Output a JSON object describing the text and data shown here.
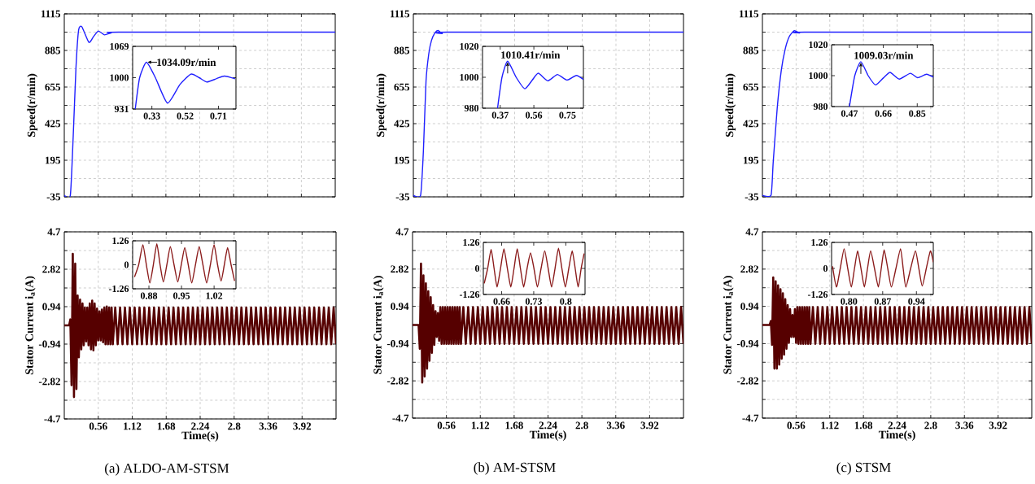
{
  "chart_data": [
    {
      "type": "line",
      "ylabel": "Speed(r/min)",
      "xlim": [
        0,
        4.48
      ],
      "ylim": [
        -35,
        1115
      ],
      "xticks": [
        0.56,
        1.12,
        1.68,
        2.24,
        2.8,
        3.36,
        3.92
      ],
      "yticks": [
        -35,
        {
          "value": 80,
          "label": null
        },
        195,
        {
          "value": 310,
          "label": null
        },
        425,
        {
          "value": 540,
          "label": null
        },
        655,
        {
          "value": 770,
          "label": null
        },
        885,
        {
          "value": 1000,
          "label": null
        },
        1115
      ],
      "grid": true,
      "tick_labels": "y",
      "series": [
        {
          "color": "#2020ff",
          "x": [
            0,
            0.1,
            0.148,
            0.193,
            0.237,
            0.29,
            0.407,
            0.48,
            0.564,
            0.663,
            0.775,
            0.9,
            4.48
          ],
          "values": [
            -25,
            -25,
            348,
            774,
            1013,
            1034,
            936,
            970,
            1007,
            983,
            995,
            1000,
            1000
          ]
        }
      ]
    },
    {
      "type": "line",
      "xlim": [
        0.22,
        0.81
      ],
      "ylim": [
        931,
        1069
      ],
      "xticks": [
        0.33,
        0.52,
        0.71
      ],
      "yticks": [
        931,
        1000,
        1069
      ],
      "annotations": [
        {
          "text": "1034.09r/min",
          "x": 0.299,
          "y": 1034.09
        }
      ],
      "series": [
        {
          "color": "#2020ff",
          "x": [
            0.235,
            0.26,
            0.299,
            0.35,
            0.419,
            0.49,
            0.553,
            0.6,
            0.644,
            0.7,
            0.744,
            0.805
          ],
          "values": [
            931,
            1000,
            1034.09,
            1000,
            944,
            985,
            1008,
            1000,
            990.5,
            998,
            1003.6,
            997.6
          ]
        }
      ]
    },
    {
      "type": "line",
      "ylabel": "Speed(r/min)",
      "xlim": [
        0,
        4.48
      ],
      "ylim": [
        -35,
        1115
      ],
      "xticks": [
        0.56,
        1.12,
        1.68,
        2.24,
        2.8,
        3.36,
        3.92
      ],
      "yticks": [
        -35,
        {
          "value": 80,
          "label": null
        },
        195,
        {
          "value": 310,
          "label": null
        },
        425,
        {
          "value": 540,
          "label": null
        },
        655,
        {
          "value": 770,
          "label": null
        },
        885,
        {
          "value": 1000,
          "label": null
        },
        1115
      ],
      "grid": true,
      "tick_labels": "y",
      "series": [
        {
          "color": "#2020ff",
          "x": [
            0,
            0.12,
            0.166,
            0.21,
            0.255,
            0.3,
            0.358,
            0.41,
            0.48,
            0.57,
            4.48
          ],
          "values": [
            -25,
            -25,
            249,
            692,
            862,
            947,
            995,
            1010,
            991,
            1000,
            1000
          ]
        }
      ]
    },
    {
      "type": "line",
      "xlim": [
        0.27,
        0.84
      ],
      "ylim": [
        980,
        1020
      ],
      "xticks": [
        0.37,
        0.56,
        0.75
      ],
      "yticks": [
        980,
        1000,
        1020
      ],
      "annotations": [
        {
          "text": "1010.41r/min",
          "x": 0.412,
          "y": 1010.41
        }
      ],
      "series": [
        {
          "color": "#2020ff",
          "x": [
            0.355,
            0.38,
            0.412,
            0.46,
            0.509,
            0.55,
            0.585,
            0.639,
            0.693,
            0.747,
            0.8,
            0.84
          ],
          "values": [
            980,
            1000,
            1010.41,
            1000,
            992.6,
            998,
            1002.6,
            997.7,
            1001.8,
            998.2,
            1001.2,
            998.6
          ]
        }
      ]
    },
    {
      "type": "line",
      "ylabel": "Speed(r/min)",
      "xlim": [
        0,
        4.48
      ],
      "ylim": [
        -35,
        1115
      ],
      "xticks": [
        0.56,
        1.12,
        1.68,
        2.24,
        2.8,
        3.36,
        3.92
      ],
      "yticks": [
        -35,
        {
          "value": 80,
          "label": null
        },
        195,
        {
          "value": 310,
          "label": null
        },
        425,
        {
          "value": 540,
          "label": null
        },
        655,
        {
          "value": 770,
          "label": null
        },
        885,
        {
          "value": 1000,
          "label": null
        },
        1115
      ],
      "grid": true,
      "tick_labels": "y",
      "series": [
        {
          "color": "#2020ff",
          "x": [
            0,
            0.143,
            0.179,
            0.246,
            0.314,
            0.381,
            0.448,
            0.53,
            0.618,
            0.7,
            4.48
          ],
          "values": [
            -25,
            -25,
            181,
            522,
            760,
            897,
            973,
            1009,
            995,
            1000,
            1000
          ]
        }
      ]
    },
    {
      "type": "line",
      "xlim": [
        0.37,
        0.94
      ],
      "ylim": [
        980,
        1020
      ],
      "xticks": [
        0.47,
        0.66,
        0.85
      ],
      "yticks": [
        980,
        1000,
        1020
      ],
      "annotations": [
        {
          "text": "1009.03r/min",
          "x": 0.534,
          "y": 1009.03
        }
      ],
      "series": [
        {
          "color": "#2020ff",
          "x": [
            0.47,
            0.5,
            0.534,
            0.575,
            0.616,
            0.66,
            0.698,
            0.749,
            0.811,
            0.852,
            0.902,
            0.94
          ],
          "values": [
            980,
            1000,
            1009.03,
            1000,
            994,
            998.5,
            1002.1,
            997.8,
            1001.5,
            998.7,
            1000.9,
            999
          ]
        }
      ]
    },
    {
      "type": "line",
      "ylabel": "Stator Current i$_{a}$(A)",
      "xlabel": "Time(s)",
      "xlim": [
        0,
        4.48
      ],
      "ylim": [
        -4.7,
        4.7
      ],
      "xticks": [
        0.56,
        1.12,
        1.68,
        2.24,
        2.8,
        3.36,
        3.92
      ],
      "yticks": [
        -4.7,
        {
          "value": -3.76,
          "label": null
        },
        -2.82,
        {
          "value": -1.88,
          "label": null
        },
        -0.94,
        {
          "value": 0,
          "label": null
        },
        0.94,
        {
          "value": 1.88,
          "label": null
        },
        2.82,
        {
          "value": 3.76,
          "label": null
        },
        4.7
      ],
      "grid": true,
      "annotations": [
        "(a) ALDO-AM-STSM"
      ],
      "series": [
        {
          "color": "#560000",
          "x": [
            0,
            0.08,
            0.1,
            0.12,
            0.14,
            0.16,
            0.18,
            0.2,
            0.22,
            0.24,
            0.26,
            0.28,
            0.3,
            0.32,
            0.34,
            0.36,
            0.38,
            0.4,
            0.42,
            0.44,
            0.46,
            0.48,
            0.5,
            0.52,
            0.54,
            0.56,
            0.58,
            0.6,
            0.62,
            0.64,
            0.66,
            0.68,
            0.7,
            0.72,
            0.74,
            0.76,
            0.78,
            0.8,
            0.84,
            0.88,
            0.92,
            0.96,
            1,
            1.04,
            1.08,
            1.12,
            1.16,
            1.2,
            1.24,
            1.28,
            1.32,
            1.36,
            1.4,
            1.44,
            1.48,
            1.52,
            1.56,
            1.6,
            1.64,
            1.68,
            1.72,
            1.76,
            1.8,
            1.84,
            1.88,
            1.92,
            1.96,
            2,
            2.04,
            2.08,
            2.12,
            2.16,
            2.2,
            2.24,
            2.28,
            2.32,
            2.36,
            2.4,
            2.44,
            2.48,
            2.52,
            2.56,
            2.6,
            2.64,
            2.68,
            2.72,
            2.76,
            2.8,
            2.84,
            2.88,
            2.92,
            2.96,
            3,
            3.04,
            3.08,
            3.12,
            3.16,
            3.2,
            3.24,
            3.28,
            3.32,
            3.36,
            3.4,
            3.44,
            3.48,
            3.52,
            3.56,
            3.6,
            3.64,
            3.68,
            3.72,
            3.76,
            3.8,
            3.84,
            3.88,
            3.92,
            3.96,
            4,
            4.04,
            4.08,
            4.12,
            4.16,
            4.2,
            4.24,
            4.28,
            4.32,
            4.36,
            4.4,
            4.44,
            4.48
          ],
          "values": [
            0,
            0,
            0.3,
            -3.0,
            3.6,
            -3.6,
            3.1,
            -3.2,
            1.5,
            -1.6,
            1.3,
            -1.2,
            1.1,
            -1.0,
            0.9,
            -0.8,
            0.9,
            -1.0,
            1.1,
            -1.2,
            1.25,
            -1.25,
            1.1,
            -1.0,
            0.85,
            -0.75,
            0.7,
            -0.75,
            0.8,
            -0.85,
            0.9,
            -0.95,
            0.95,
            -0.95,
            0.9,
            -0.95,
            0.9,
            -0.95,
            0.9,
            -0.95,
            0.9,
            -0.95,
            0.9,
            -0.95,
            0.9,
            -0.95,
            0.9,
            -0.95,
            0.9,
            -0.95,
            0.9,
            -0.95,
            0.9,
            -0.95,
            0.9,
            -0.95,
            0.9,
            -0.95,
            0.9,
            -0.95,
            0.9,
            -0.95,
            0.9,
            -0.95,
            0.9,
            -0.95,
            0.9,
            -0.95,
            0.9,
            -0.95,
            0.9,
            -0.95,
            0.9,
            -0.95,
            0.9,
            -0.95,
            0.9,
            -0.95,
            0.9,
            -0.95,
            0.9,
            -0.95,
            0.9,
            -0.95,
            0.9,
            -0.95,
            0.9,
            -0.95,
            0.9,
            -0.95,
            0.9,
            -0.95,
            0.9,
            -0.95,
            0.9,
            -0.95,
            0.9,
            -0.95,
            0.9,
            -0.95,
            0.9,
            -0.95,
            0.9,
            -0.95,
            0.9,
            -0.95,
            0.9,
            -0.95,
            0.9,
            -0.95,
            0.9,
            -0.95,
            0.9,
            -0.95,
            0.9,
            -0.95,
            0.9,
            -0.95,
            0.9,
            -0.95,
            0.9,
            -0.95,
            0.9,
            -0.95,
            0.9,
            -0.95,
            0.9,
            -0.95,
            0.9,
            -0.95
          ]
        }
      ]
    },
    {
      "type": "line",
      "xlim": [
        0.845,
        1.067
      ],
      "ylim": [
        -1.26,
        1.26
      ],
      "xticks": [
        0.88,
        0.95,
        1.02
      ],
      "yticks": [
        -1.26,
        0,
        1.26
      ],
      "series": [
        {
          "color": "#8b1c1c",
          "x": [
            0.849,
            0.858,
            0.867,
            0.8745,
            0.882,
            0.8895,
            0.897,
            0.904,
            0.911,
            0.9185,
            0.926,
            0.934,
            0.942,
            0.9495,
            0.957,
            0.9645,
            0.972,
            0.98,
            0.988,
            0.996,
            1.004,
            1.012,
            1.02,
            1.0275,
            1.035,
            1.042,
            1.049,
            1.0565,
            1.064
          ],
          "values": [
            -0.64,
            0,
            1.05,
            0,
            -0.95,
            0,
            1.1,
            0,
            -0.9,
            0,
            0.95,
            0,
            -0.9,
            0,
            0.9,
            0,
            -0.95,
            0,
            0.95,
            0,
            -0.95,
            0,
            1.05,
            0,
            -0.85,
            0,
            0.9,
            0,
            -0.85
          ]
        }
      ]
    },
    {
      "type": "line",
      "ylabel": "Stator Current i$_{a}$(A)",
      "xlabel": "Time(s)",
      "xlim": [
        0,
        4.48
      ],
      "ylim": [
        -4.7,
        4.7
      ],
      "xticks": [
        0.56,
        1.12,
        1.68,
        2.24,
        2.8,
        3.36,
        3.92
      ],
      "yticks": [
        -4.7,
        {
          "value": -3.76,
          "label": null
        },
        -2.82,
        {
          "value": -1.88,
          "label": null
        },
        -0.94,
        {
          "value": 0,
          "label": null
        },
        0.94,
        {
          "value": 1.88,
          "label": null
        },
        2.82,
        {
          "value": 3.76,
          "label": null
        },
        4.7
      ],
      "grid": true,
      "annotations": [
        "(b) AM-STSM"
      ],
      "series": [
        {
          "color": "#560000",
          "x": [
            0,
            0.1,
            0.12,
            0.14,
            0.16,
            0.18,
            0.2,
            0.22,
            0.24,
            0.26,
            0.28,
            0.3,
            0.32,
            0.34,
            0.36,
            0.38,
            0.4,
            0.42,
            0.44,
            0.46,
            0.48,
            0.5,
            0.52,
            0.54,
            0.56,
            0.58,
            0.6,
            0.62,
            0.64,
            0.66,
            0.68,
            0.7,
            0.72,
            0.74,
            0.76,
            0.78,
            0.8,
            0.84,
            0.88,
            0.92,
            0.96,
            1,
            1.04,
            1.08,
            1.12,
            1.16,
            1.2,
            1.24,
            1.28,
            1.32,
            1.36,
            1.4,
            1.44,
            1.48,
            1.52,
            1.56,
            1.6,
            1.64,
            1.68,
            1.72,
            1.76,
            1.8,
            1.84,
            1.88,
            1.92,
            1.96,
            2,
            2.04,
            2.08,
            2.12,
            2.16,
            2.2,
            2.24,
            2.28,
            2.32,
            2.36,
            2.4,
            2.44,
            2.48,
            2.52,
            2.56,
            2.6,
            2.64,
            2.68,
            2.72,
            2.76,
            2.8,
            2.84,
            2.88,
            2.92,
            2.96,
            3,
            3.04,
            3.08,
            3.12,
            3.16,
            3.2,
            3.24,
            3.28,
            3.32,
            3.36,
            3.4,
            3.44,
            3.48,
            3.52,
            3.56,
            3.6,
            3.64,
            3.68,
            3.72,
            3.76,
            3.8,
            3.84,
            3.88,
            3.92,
            3.96,
            4,
            4.04,
            4.08,
            4.12,
            4.16,
            4.2,
            4.24,
            4.28,
            4.32,
            4.36,
            4.4,
            4.44,
            4.48
          ],
          "values": [
            0,
            0,
            -1.2,
            3.1,
            -2.9,
            2.5,
            -2.6,
            2.1,
            -2.2,
            1.7,
            -1.8,
            1.4,
            -1.4,
            1.0,
            -1.0,
            0.7,
            -0.6,
            0.6,
            -0.8,
            0.9,
            -0.95,
            0.9,
            -0.95,
            0.9,
            -0.95,
            0.9,
            -0.95,
            0.9,
            -0.95,
            0.9,
            -0.95,
            0.9,
            -0.95,
            0.9,
            -0.95,
            0.9,
            -0.95,
            0.9,
            -0.95,
            0.9,
            -0.95,
            0.9,
            -0.95,
            0.9,
            -0.95,
            0.9,
            -0.95,
            0.9,
            -0.95,
            0.9,
            -0.95,
            0.9,
            -0.95,
            0.9,
            -0.95,
            0.9,
            -0.95,
            0.9,
            -0.95,
            0.9,
            -0.95,
            0.9,
            -0.95,
            0.9,
            -0.95,
            0.9,
            -0.95,
            0.9,
            -0.95,
            0.9,
            -0.95,
            0.9,
            -0.95,
            0.9,
            -0.95,
            0.9,
            -0.95,
            0.9,
            -0.95,
            0.9,
            -0.95,
            0.9,
            -0.95,
            0.9,
            -0.95,
            0.9,
            -0.95,
            0.9,
            -0.95,
            0.9,
            -0.95,
            0.9,
            -0.95,
            0.9,
            -0.95,
            0.9,
            -0.95,
            0.9,
            -0.95,
            0.9,
            -0.95,
            0.9,
            -0.95,
            0.9,
            -0.95,
            0.9,
            -0.95,
            0.9,
            -0.95,
            0.9,
            -0.95,
            0.9,
            -0.95,
            0.9,
            -0.95,
            0.9,
            -0.95,
            0.9,
            -0.95,
            0.9,
            -0.95,
            0.9,
            -0.95,
            0.9,
            -0.95,
            0.9,
            -0.95,
            0.9,
            -0.95
          ]
        }
      ]
    },
    {
      "type": "line",
      "xlim": [
        0.62,
        0.842
      ],
      "ylim": [
        -1.26,
        1.26
      ],
      "xticks": [
        0.66,
        0.73,
        0.8
      ],
      "yticks": [
        -1.26,
        0,
        1.26
      ],
      "series": [
        {
          "color": "#8b1c1c",
          "x": [
            0.622,
            0.6295,
            0.637,
            0.6435,
            0.65,
            0.6575,
            0.665,
            0.6725,
            0.68,
            0.687,
            0.694,
            0.701,
            0.708,
            0.7155,
            0.723,
            0.7305,
            0.738,
            0.746,
            0.754,
            0.7615,
            0.769,
            0.7765,
            0.784,
            0.7915,
            0.799,
            0.8065,
            0.814,
            0.8205,
            0.827,
            0.8335,
            0.84
          ],
          "values": [
            -0.72,
            0,
            0.92,
            0,
            -0.9,
            0,
            0.95,
            0,
            -0.9,
            0,
            0.95,
            0,
            -0.9,
            0,
            0.75,
            0,
            -0.9,
            0,
            0.85,
            0,
            -0.9,
            0,
            0.98,
            0,
            -0.9,
            0,
            0.85,
            0,
            -0.9,
            0,
            0.72
          ]
        }
      ]
    },
    {
      "type": "line",
      "ylabel": "Stator Current i$_{a}$(A)",
      "xlabel": "Time(s)",
      "xlim": [
        0,
        4.48
      ],
      "ylim": [
        -4.7,
        4.7
      ],
      "xticks": [
        0.56,
        1.12,
        1.68,
        2.24,
        2.8,
        3.36,
        3.92
      ],
      "yticks": [
        -4.7,
        {
          "value": -3.76,
          "label": null
        },
        -2.82,
        {
          "value": -1.88,
          "label": null
        },
        -0.94,
        {
          "value": 0,
          "label": null
        },
        0.94,
        {
          "value": 1.88,
          "label": null
        },
        2.82,
        {
          "value": 3.76,
          "label": null
        },
        4.7
      ],
      "grid": true,
      "annotations": [
        "(c) STSM"
      ],
      "series": [
        {
          "color": "#560000",
          "x": [
            0,
            0.12,
            0.14,
            0.16,
            0.18,
            0.2,
            0.22,
            0.24,
            0.26,
            0.28,
            0.3,
            0.32,
            0.34,
            0.36,
            0.38,
            0.4,
            0.42,
            0.44,
            0.46,
            0.48,
            0.5,
            0.52,
            0.54,
            0.56,
            0.58,
            0.6,
            0.62,
            0.64,
            0.66,
            0.68,
            0.7,
            0.72,
            0.74,
            0.76,
            0.78,
            0.8,
            0.84,
            0.88,
            0.92,
            0.96,
            1,
            1.04,
            1.08,
            1.12,
            1.16,
            1.2,
            1.24,
            1.28,
            1.32,
            1.36,
            1.4,
            1.44,
            1.48,
            1.52,
            1.56,
            1.6,
            1.64,
            1.68,
            1.72,
            1.76,
            1.8,
            1.84,
            1.88,
            1.92,
            1.96,
            2,
            2.04,
            2.08,
            2.12,
            2.16,
            2.2,
            2.24,
            2.28,
            2.32,
            2.36,
            2.4,
            2.44,
            2.48,
            2.52,
            2.56,
            2.6,
            2.64,
            2.68,
            2.72,
            2.76,
            2.8,
            2.84,
            2.88,
            2.92,
            2.96,
            3,
            3.04,
            3.08,
            3.12,
            3.16,
            3.2,
            3.24,
            3.28,
            3.32,
            3.36,
            3.4,
            3.44,
            3.48,
            3.52,
            3.56,
            3.6,
            3.64,
            3.68,
            3.72,
            3.76,
            3.8,
            3.84,
            3.88,
            3.92,
            3.96,
            4,
            4.04,
            4.08,
            4.12,
            4.16,
            4.2,
            4.24,
            4.28,
            4.32,
            4.36,
            4.4,
            4.44,
            4.48
          ],
          "values": [
            0,
            0,
            0.2,
            -1.0,
            2.4,
            -2.2,
            2.2,
            -2.2,
            2.0,
            -2.0,
            1.8,
            -1.7,
            1.6,
            -1.5,
            1.3,
            -1.2,
            1.0,
            -0.9,
            0.8,
            -0.6,
            0.5,
            -0.6,
            0.8,
            -0.9,
            0.9,
            -0.95,
            0.9,
            -0.95,
            0.9,
            -0.95,
            0.9,
            -0.95,
            0.9,
            -0.95,
            0.9,
            -0.95,
            0.9,
            -0.95,
            0.9,
            -0.95,
            0.9,
            -0.95,
            0.9,
            -0.95,
            0.9,
            -0.95,
            0.9,
            -0.95,
            0.9,
            -0.95,
            0.9,
            -0.95,
            0.9,
            -0.95,
            0.9,
            -0.95,
            0.9,
            -0.95,
            0.9,
            -0.95,
            0.9,
            -0.95,
            0.9,
            -0.95,
            0.9,
            -0.95,
            0.9,
            -0.95,
            0.9,
            -0.95,
            0.9,
            -0.95,
            0.9,
            -0.95,
            0.9,
            -0.95,
            0.9,
            -0.95,
            0.9,
            -0.95,
            0.9,
            -0.95,
            0.9,
            -0.95,
            0.9,
            -0.95,
            0.9,
            -0.95,
            0.9,
            -0.95,
            0.9,
            -0.95,
            0.9,
            -0.95,
            0.9,
            -0.95,
            0.9,
            -0.95,
            0.9,
            -0.95,
            0.9,
            -0.95,
            0.9,
            -0.95,
            0.9,
            -0.95,
            0.9,
            -0.95,
            0.9,
            -0.95,
            0.9,
            -0.95,
            0.9,
            -0.95,
            0.9,
            -0.95,
            0.9,
            -0.95,
            0.9,
            -0.95,
            0.9,
            -0.95,
            0.9,
            -0.95,
            0.9,
            -0.95,
            0.9,
            -0.95
          ]
        }
      ]
    },
    {
      "type": "line",
      "xlim": [
        0.764,
        0.975
      ],
      "ylim": [
        -1.26,
        1.26
      ],
      "xticks": [
        {
          "value": 0.8,
          "label": "0.80"
        },
        0.87,
        0.94
      ],
      "yticks": [
        -1.26,
        0,
        1.26
      ],
      "series": [
        {
          "color": "#8b1c1c",
          "x": [
            0.766,
            0.774,
            0.782,
            0.79,
            0.7975,
            0.805,
            0.8115,
            0.818,
            0.825,
            0.832,
            0.8385,
            0.845,
            0.853,
            0.861,
            0.867,
            0.873,
            0.8805,
            0.888,
            0.8975,
            0.907,
            0.9125,
            0.918,
            0.928,
            0.938,
            0.945,
            0.952,
            0.9605,
            0.969,
            0.975
          ],
          "values": [
            0.1,
            -0.9,
            0,
            0.95,
            0,
            -0.9,
            0,
            0.85,
            0,
            -0.9,
            0,
            0.85,
            0,
            -0.9,
            0,
            0.9,
            0,
            -0.9,
            0,
            0.95,
            0,
            -0.9,
            0,
            0.85,
            0,
            -0.85,
            0,
            0.85,
            0.3
          ]
        }
      ]
    }
  ]
}
